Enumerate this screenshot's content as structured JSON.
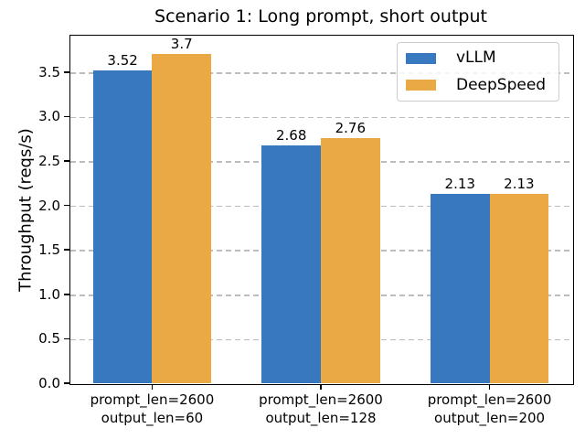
{
  "chart_data": {
    "type": "bar",
    "title": "Scenario 1: Long prompt, short output",
    "ylabel": "Throughput (reqs/s)",
    "xlabel": "",
    "categories": [
      [
        "prompt_len=2600",
        "output_len=60"
      ],
      [
        "prompt_len=2600",
        "output_len=128"
      ],
      [
        "prompt_len=2600",
        "output_len=200"
      ]
    ],
    "series": [
      {
        "name": "vLLM",
        "color": "#3778be",
        "values": [
          3.52,
          2.68,
          2.13
        ],
        "labels": [
          "3.52",
          "2.68",
          "2.13"
        ]
      },
      {
        "name": "DeepSpeed",
        "color": "#eaa944",
        "values": [
          3.7,
          2.76,
          2.13
        ],
        "labels": [
          "3.7",
          "2.76",
          "2.13"
        ]
      }
    ],
    "yticks": [
      0.0,
      0.5,
      1.0,
      1.5,
      2.0,
      2.5,
      3.0,
      3.5
    ],
    "ytick_labels": [
      "0.0",
      "0.5",
      "1.0",
      "1.5",
      "2.0",
      "2.5",
      "3.0",
      "3.5"
    ],
    "ylim": [
      0,
      3.92
    ],
    "xlim": [
      -0.49,
      2.49
    ],
    "bar_width": 0.35,
    "grid": {
      "axis": "y",
      "style": "dashed",
      "color": "#bcbcbc"
    },
    "legend": {
      "position": "upper right",
      "entries": [
        "vLLM",
        "DeepSpeed"
      ]
    }
  }
}
